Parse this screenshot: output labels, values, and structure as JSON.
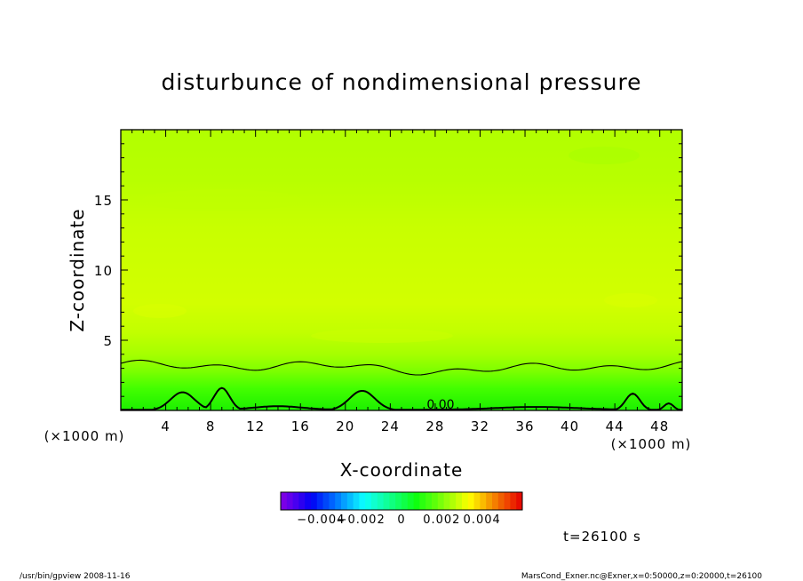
{
  "chart_data": {
    "type": "heatmap",
    "title": "disturbunce of nondimensional pressure",
    "xlabel": "X-coordinate",
    "ylabel": "Z-coordinate",
    "x_unit_left": "(×1000 m)",
    "x_unit_right": "(×1000 m)",
    "xlim": [
      0,
      50
    ],
    "ylim": [
      0,
      20
    ],
    "xticks": [
      4,
      8,
      12,
      16,
      20,
      24,
      28,
      32,
      36,
      40,
      44,
      48
    ],
    "yticks": [
      5,
      10,
      15
    ],
    "contour_label": "0.00",
    "colorbar": {
      "range": [
        -0.006,
        0.006
      ],
      "ticks": [
        {
          "value": -0.004,
          "label": "−0.004"
        },
        {
          "value": -0.002,
          "label": "−0.002"
        },
        {
          "value": 0,
          "label": "0"
        },
        {
          "value": 0.002,
          "label": "0.002"
        },
        {
          "value": 0.004,
          "label": "0.004"
        }
      ]
    },
    "field_approx": [
      {
        "z_range": [
          0,
          1.5
        ],
        "value": 0.0001
      },
      {
        "z_range": [
          1.5,
          3.0
        ],
        "value": 0.0005
      },
      {
        "z_range": [
          3.0,
          8.0
        ],
        "value": 0.0022
      },
      {
        "z_range": [
          8.0,
          13.0
        ],
        "value": 0.0019
      },
      {
        "z_range": [
          13.0,
          20.0
        ],
        "value": 0.0013
      }
    ]
  },
  "info": {
    "time_label": "t=26100 s",
    "footer_left": "/usr/bin/gpview   2008-11-16",
    "footer_right": "MarsCond_Exner.nc@Exner,x=0:50000,z=0:20000,t=26100"
  }
}
